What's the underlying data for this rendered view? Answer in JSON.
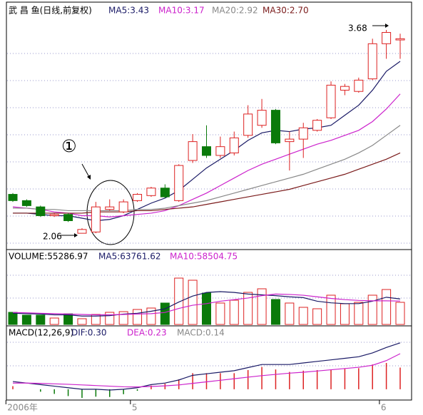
{
  "chart_data": {
    "type": "candlestick",
    "header": [
      {
        "text": "武 昌 鱼(日线,前复权)",
        "color": "#000000"
      },
      {
        "text": "MA5:3.43",
        "color": "#1a1a66"
      },
      {
        "text": "MA10:3.17",
        "color": "#cc22cc"
      },
      {
        "text": "MA20:2.92",
        "color": "#888888"
      },
      {
        "text": "MA30:2.70",
        "color": "#7a1a1a"
      }
    ],
    "categories": [
      "2006年",
      null,
      null,
      null,
      null,
      null,
      null,
      null,
      null,
      "5",
      null,
      null,
      null,
      null,
      null,
      null,
      null,
      null,
      null,
      null,
      null,
      null,
      null,
      null,
      null,
      null,
      null,
      "6",
      null
    ],
    "open": [
      2.37,
      2.32,
      2.27,
      2.2,
      2.21,
      2.06,
      2.07,
      2.25,
      2.23,
      2.32,
      2.36,
      2.42,
      2.32,
      2.64,
      2.75,
      2.68,
      2.7,
      2.84,
      2.92,
      3.04,
      2.79,
      2.81,
      2.88,
      2.98,
      3.2,
      3.19,
      3.29,
      3.57,
      3.6
    ],
    "close": [
      2.32,
      2.28,
      2.2,
      2.21,
      2.16,
      2.09,
      2.27,
      2.27,
      2.31,
      2.37,
      2.42,
      2.35,
      2.6,
      2.79,
      2.68,
      2.75,
      2.82,
      3.01,
      3.04,
      2.78,
      2.81,
      2.9,
      2.96,
      3.24,
      3.23,
      3.28,
      3.57,
      3.66,
      3.61
    ],
    "high": [
      2.38,
      2.33,
      2.28,
      2.22,
      2.22,
      2.1,
      2.31,
      2.33,
      2.33,
      2.38,
      2.43,
      2.45,
      2.61,
      2.85,
      2.92,
      2.83,
      2.87,
      3.08,
      3.13,
      3.05,
      2.87,
      2.94,
      2.97,
      3.27,
      3.25,
      3.3,
      3.61,
      3.68,
      3.65
    ],
    "low": [
      2.31,
      2.27,
      2.19,
      2.19,
      2.15,
      2.06,
      2.06,
      2.24,
      2.22,
      2.31,
      2.35,
      2.34,
      2.31,
      2.62,
      2.66,
      2.66,
      2.68,
      2.82,
      2.9,
      2.77,
      2.56,
      2.66,
      2.87,
      2.97,
      3.16,
      3.18,
      3.28,
      3.45,
      3.45
    ],
    "up_color": "#dd2222",
    "down_color": "#0a7a0a",
    "ylim": [
      1.93,
      3.89
    ],
    "series": [
      {
        "name": "MA5",
        "color": "#1a1a66",
        "values": [
          2.22,
          2.22,
          2.21,
          2.2,
          2.2,
          2.18,
          2.16,
          2.17,
          2.2,
          2.25,
          2.3,
          2.34,
          2.4,
          2.49,
          2.58,
          2.65,
          2.72,
          2.8,
          2.86,
          2.88,
          2.87,
          2.89,
          2.9,
          2.92,
          3.0,
          3.08,
          3.2,
          3.35,
          3.43
        ]
      },
      {
        "name": "MA10",
        "color": "#cc22cc",
        "values": [
          2.27,
          2.26,
          2.25,
          2.23,
          2.22,
          2.2,
          2.2,
          2.19,
          2.2,
          2.21,
          2.22,
          2.24,
          2.28,
          2.33,
          2.38,
          2.44,
          2.5,
          2.56,
          2.61,
          2.65,
          2.69,
          2.73,
          2.77,
          2.8,
          2.84,
          2.88,
          2.95,
          3.05,
          3.17
        ]
      },
      {
        "name": "MA20",
        "color": "#888888",
        "values": [
          2.26,
          2.26,
          2.25,
          2.25,
          2.24,
          2.24,
          2.24,
          2.24,
          2.24,
          2.25,
          2.25,
          2.26,
          2.28,
          2.3,
          2.32,
          2.35,
          2.38,
          2.41,
          2.44,
          2.47,
          2.5,
          2.53,
          2.57,
          2.61,
          2.65,
          2.7,
          2.76,
          2.84,
          2.92
        ]
      },
      {
        "name": "MA30",
        "color": "#7a1a1a",
        "values": [
          2.22,
          2.22,
          2.22,
          2.22,
          2.22,
          2.22,
          2.23,
          2.23,
          2.23,
          2.24,
          2.24,
          2.25,
          2.26,
          2.27,
          2.29,
          2.31,
          2.33,
          2.35,
          2.37,
          2.39,
          2.41,
          2.44,
          2.47,
          2.5,
          2.53,
          2.57,
          2.61,
          2.65,
          2.7
        ]
      }
    ],
    "annotations": [
      "3.68",
      "2.06",
      "①"
    ],
    "volume": {
      "type": "bar",
      "header": [
        {
          "text": "VOLUME:55286.97",
          "color": "#000000"
        },
        {
          "text": "MA5:63761.62",
          "color": "#1a1a66"
        },
        {
          "text": "MA10:58504.75",
          "color": "#cc22cc"
        }
      ],
      "values": [
        30300,
        23200,
        23200,
        16000,
        26700,
        14300,
        25000,
        30300,
        32000,
        37400,
        41000,
        53500,
        115800,
        110500,
        78400,
        53500,
        60600,
        80200,
        89100,
        62400,
        53500,
        42800,
        39200,
        73100,
        51700,
        55200,
        73100,
        87300,
        55286.97
      ],
      "ylim": [
        0,
        180000
      ],
      "series": [
        {
          "name": "MA5",
          "color": "#1a1a66",
          "values": [
            28000,
            27000,
            26000,
            24000,
            24000,
            21000,
            21000,
            22000,
            26000,
            28000,
            33000,
            39000,
            56000,
            71000,
            80000,
            82000,
            80000,
            76000,
            74000,
            72000,
            69000,
            67000,
            58000,
            54000,
            52000,
            52000,
            58000,
            68000,
            63761.62
          ]
        },
        {
          "name": "MA10",
          "color": "#cc22cc",
          "values": [
            30000,
            29000,
            28000,
            27000,
            26000,
            25000,
            24000,
            24000,
            25000,
            26000,
            27000,
            30000,
            40000,
            48000,
            52000,
            58000,
            62000,
            66000,
            72000,
            76000,
            75000,
            73000,
            69000,
            65000,
            62000,
            60000,
            59000,
            59000,
            58504.75
          ]
        }
      ]
    },
    "macd": {
      "type": "macd",
      "header": [
        {
          "text": "MACD(12,26,9)",
          "color": "#000000"
        },
        {
          "text": "DIF:0.30",
          "color": "#1a1a66"
        },
        {
          "text": "DEA:0.23",
          "color": "#cc22cc"
        },
        {
          "text": "MACD:0.14",
          "color": "#888888"
        }
      ],
      "values": [
        0.02,
        0,
        -0.016,
        -0.03,
        -0.044,
        -0.056,
        -0.048,
        -0.05,
        -0.032,
        -0.01,
        0.024,
        0.036,
        0.064,
        0.104,
        0.104,
        0.104,
        0.104,
        0.124,
        0.144,
        0.128,
        0.112,
        0.12,
        0.124,
        0.128,
        0.132,
        0.136,
        0.16,
        0.17,
        0.14
      ],
      "ylim": [
        -0.065,
        0.405
      ],
      "series": [
        {
          "name": "DIF",
          "color": "#1a1a66",
          "values": [
            0.05,
            0.04,
            0.03,
            0.02,
            0.01,
            0.0,
            0.0,
            -0.005,
            0.0,
            0.01,
            0.03,
            0.04,
            0.06,
            0.09,
            0.1,
            0.11,
            0.12,
            0.14,
            0.16,
            0.16,
            0.16,
            0.17,
            0.18,
            0.19,
            0.2,
            0.21,
            0.235,
            0.27,
            0.3
          ]
        },
        {
          "name": "DEA",
          "color": "#cc22cc",
          "values": [
            0.04,
            0.04,
            0.038,
            0.035,
            0.032,
            0.028,
            0.024,
            0.02,
            0.016,
            0.015,
            0.018,
            0.022,
            0.028,
            0.038,
            0.048,
            0.058,
            0.068,
            0.078,
            0.088,
            0.096,
            0.104,
            0.11,
            0.118,
            0.126,
            0.134,
            0.142,
            0.155,
            0.185,
            0.23
          ]
        }
      ]
    }
  }
}
